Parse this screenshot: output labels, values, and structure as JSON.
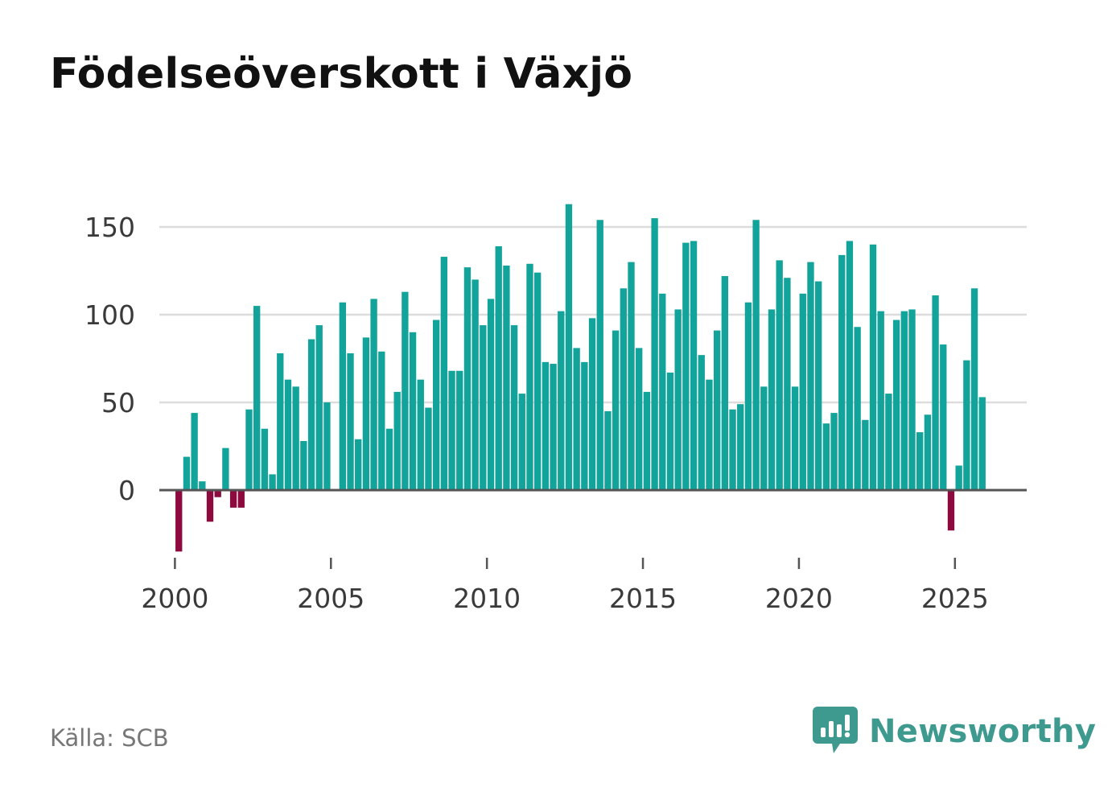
{
  "title": "Födelseöverskott i Växjö",
  "source": "Källa: SCB",
  "brand": {
    "name": "Newsworthy",
    "icon": "newsworthy-logo-icon"
  },
  "colors": {
    "positive": "#12a39a",
    "negative": "#8c0a3e",
    "grid": "#dcdcdc",
    "axis": "#555555",
    "brand": "#3e9a8f"
  },
  "chart_data": {
    "type": "bar",
    "title": "Födelseöverskott i Växjö",
    "xlabel": "",
    "ylabel": "",
    "ylim": [
      -40,
      170
    ],
    "yticks": [
      0,
      50,
      100,
      150
    ],
    "xlim": [
      1999.5,
      2027.3
    ],
    "xticks": [
      2000,
      2005,
      2010,
      2015,
      2020,
      2025
    ],
    "start": 2000.0,
    "step": 0.25,
    "values": [
      -35,
      19,
      44,
      5,
      -18,
      -4,
      24,
      -10,
      -10,
      46,
      105,
      35,
      9,
      78,
      63,
      59,
      28,
      86,
      94,
      50,
      0,
      107,
      78,
      29,
      87,
      109,
      79,
      35,
      56,
      113,
      90,
      63,
      47,
      97,
      133,
      68,
      68,
      127,
      120,
      94,
      109,
      139,
      128,
      94,
      55,
      129,
      124,
      73,
      72,
      102,
      163,
      81,
      73,
      98,
      154,
      45,
      91,
      115,
      130,
      81,
      56,
      155,
      112,
      67,
      103,
      141,
      142,
      77,
      63,
      91,
      122,
      46,
      49,
      107,
      154,
      59,
      103,
      131,
      121,
      59,
      112,
      130,
      119,
      38,
      44,
      134,
      142,
      93,
      40,
      140,
      102,
      55,
      97,
      102,
      103,
      33,
      43,
      111,
      83,
      -23,
      14,
      74,
      115,
      53
    ]
  }
}
